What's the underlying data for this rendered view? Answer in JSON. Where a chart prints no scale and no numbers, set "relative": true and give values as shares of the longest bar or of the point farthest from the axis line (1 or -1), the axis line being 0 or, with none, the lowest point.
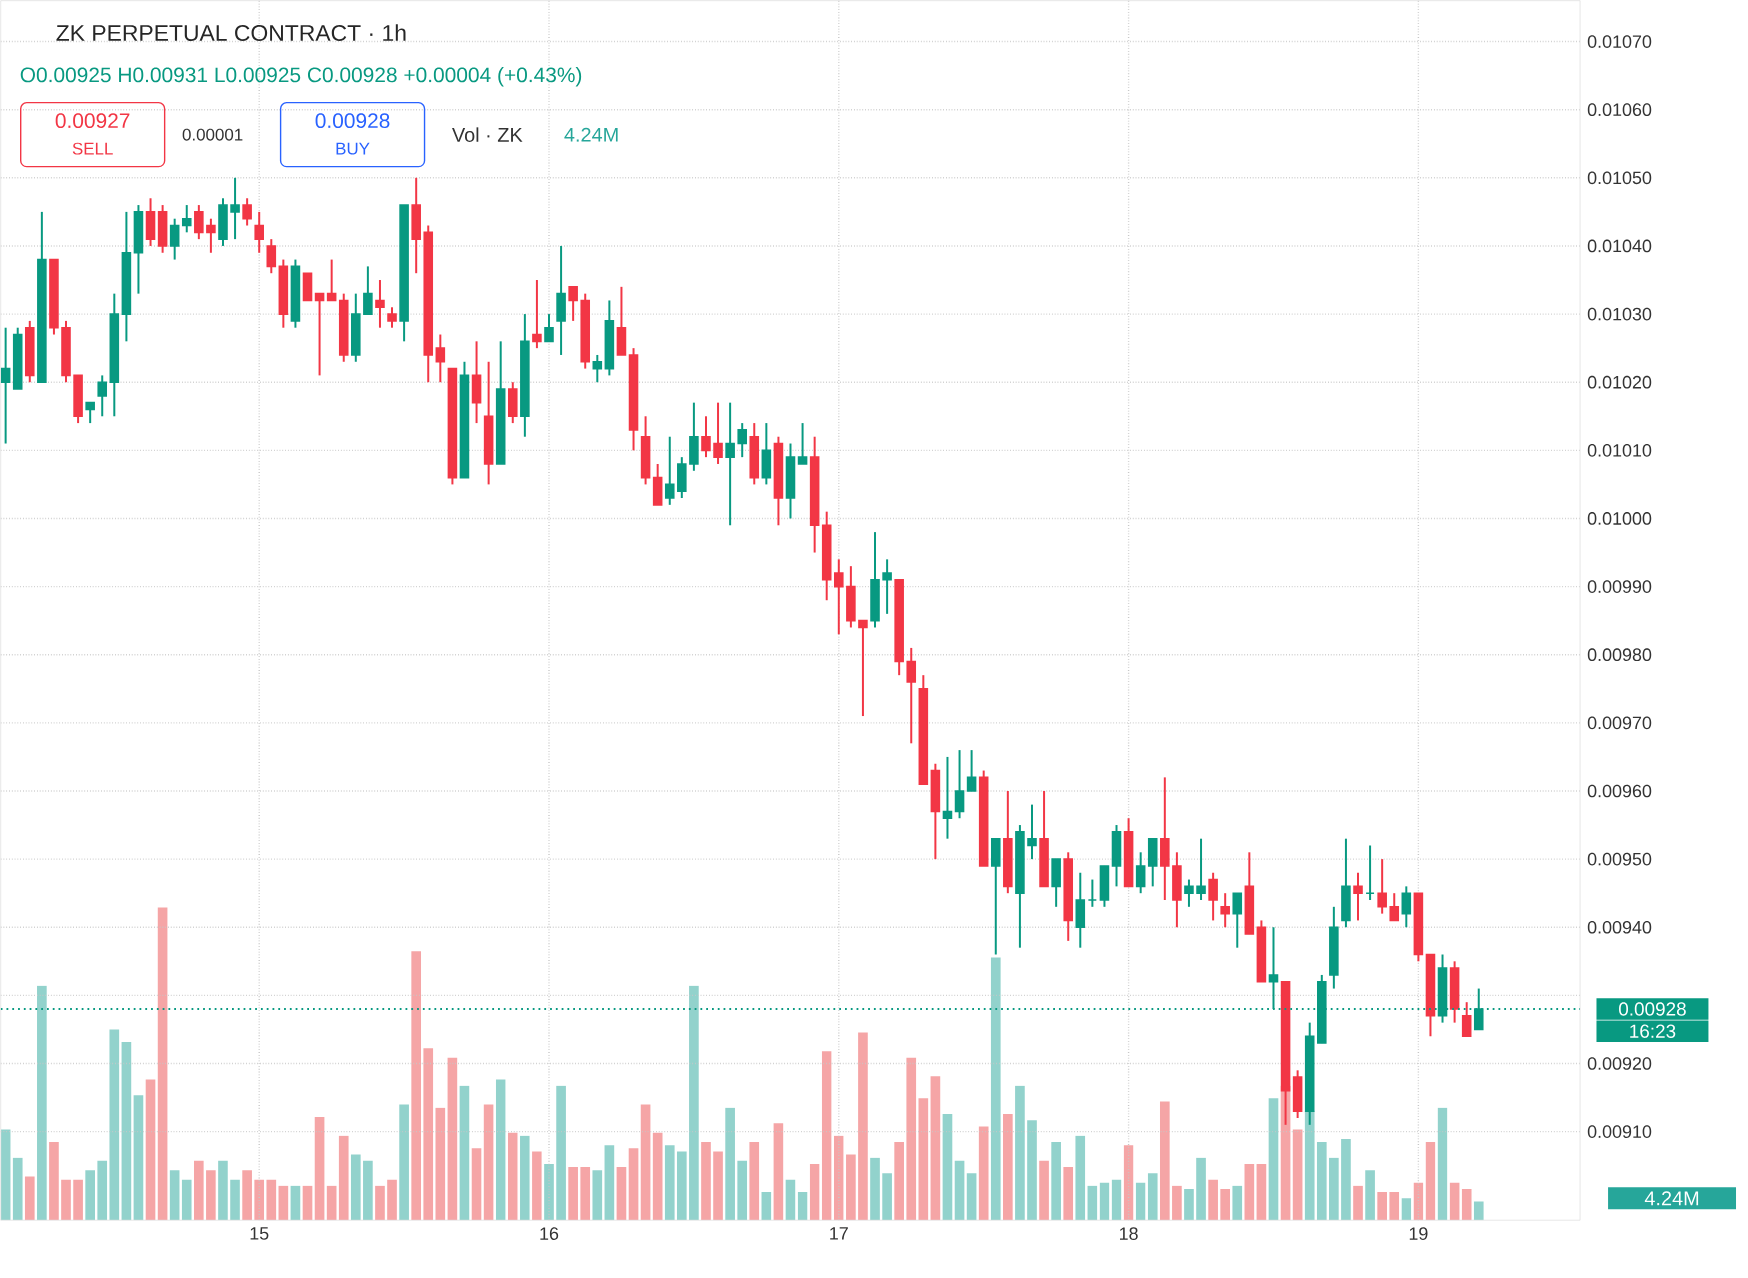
{
  "chart_data": [
    {
      "type": "candlestick",
      "title": "ZK PERPETUAL CONTRACT · 1h",
      "subtitle": "O0.00925 H0.00931 L0.00925 C0.00928 +0.00004 (+0.43%)",
      "x": [
        14.125,
        14.1667,
        14.2083,
        14.25,
        14.2917,
        14.3333,
        14.375,
        14.4167,
        14.4583,
        14.5,
        14.5417,
        14.5833,
        14.625,
        14.6667,
        14.7083,
        14.75,
        14.7917,
        14.8333,
        14.875,
        14.9167,
        14.9583,
        15,
        15.0417,
        15.0833,
        15.125,
        15.1667,
        15.2083,
        15.25,
        15.2917,
        15.3333,
        15.375,
        15.4167,
        15.4583,
        15.5,
        15.5417,
        15.5833,
        15.625,
        15.6667,
        15.7083,
        15.75,
        15.7917,
        15.8333,
        15.875,
        15.9167,
        15.9583,
        16,
        16.0417,
        16.0833,
        16.125,
        16.1667,
        16.2083,
        16.25,
        16.2917,
        16.3333,
        16.375,
        16.4167,
        16.4583,
        16.5,
        16.5417,
        16.5833,
        16.625,
        16.6667,
        16.7083,
        16.75,
        16.7917,
        16.8333,
        16.875,
        16.9167,
        16.9583,
        17,
        17.0417,
        17.0833,
        17.125,
        17.1667,
        17.2083,
        17.25,
        17.2917,
        17.3333,
        17.375,
        17.4167,
        17.4583,
        17.5,
        17.5417,
        17.5833,
        17.625,
        17.6667,
        17.7083,
        17.75,
        17.7917,
        17.8333,
        17.875,
        17.9167,
        17.9583,
        18,
        18.0417,
        18.0833,
        18.125,
        18.1667,
        18.2083,
        18.25,
        18.2917,
        18.3333,
        18.375,
        18.4167,
        18.4583,
        18.5,
        18.5417,
        18.5833,
        18.625,
        18.6667,
        18.7083,
        18.75,
        18.7917,
        18.8333,
        18.875,
        18.9167,
        18.9583,
        19,
        19.0417,
        19.0833,
        19.125,
        19.1667,
        19.2083
      ],
      "ohlc": [
        [
          0.0102,
          0.01028,
          0.01011,
          0.01022
        ],
        [
          0.01019,
          0.01028,
          0.01019,
          0.01027
        ],
        [
          0.01028,
          0.01029,
          0.0102,
          0.01021
        ],
        [
          0.0102,
          0.01045,
          0.0102,
          0.01038
        ],
        [
          0.01038,
          0.01038,
          0.01027,
          0.01028
        ],
        [
          0.01028,
          0.01029,
          0.0102,
          0.01021
        ],
        [
          0.01021,
          0.01021,
          0.01014,
          0.01015
        ],
        [
          0.01016,
          0.01017,
          0.01014,
          0.01017
        ],
        [
          0.01018,
          0.01021,
          0.01015,
          0.0102
        ],
        [
          0.0102,
          0.01033,
          0.01015,
          0.0103
        ],
        [
          0.0103,
          0.01045,
          0.01026,
          0.01039
        ],
        [
          0.01039,
          0.01046,
          0.01033,
          0.01045
        ],
        [
          0.01045,
          0.01047,
          0.0104,
          0.01041
        ],
        [
          0.01045,
          0.01046,
          0.01039,
          0.0104
        ],
        [
          0.0104,
          0.01044,
          0.01038,
          0.01043
        ],
        [
          0.01043,
          0.01046,
          0.01042,
          0.01044
        ],
        [
          0.01045,
          0.01046,
          0.01041,
          0.01042
        ],
        [
          0.01043,
          0.01044,
          0.01039,
          0.01042
        ],
        [
          0.01041,
          0.01047,
          0.0104,
          0.01046
        ],
        [
          0.01045,
          0.0105,
          0.01041,
          0.01046
        ],
        [
          0.01046,
          0.01047,
          0.01043,
          0.01044
        ],
        [
          0.01043,
          0.01045,
          0.01039,
          0.01041
        ],
        [
          0.0104,
          0.01041,
          0.01036,
          0.01037
        ],
        [
          0.01037,
          0.01038,
          0.01028,
          0.0103
        ],
        [
          0.01029,
          0.01038,
          0.01028,
          0.01037
        ],
        [
          0.01036,
          0.01036,
          0.01032,
          0.01032
        ],
        [
          0.01033,
          0.01033,
          0.01021,
          0.01032
        ],
        [
          0.01033,
          0.01038,
          0.01032,
          0.01032
        ],
        [
          0.01032,
          0.01033,
          0.01023,
          0.01024
        ],
        [
          0.01024,
          0.01033,
          0.01023,
          0.0103
        ],
        [
          0.0103,
          0.01037,
          0.0103,
          0.01033
        ],
        [
          0.01032,
          0.01035,
          0.01028,
          0.01031
        ],
        [
          0.0103,
          0.01031,
          0.01028,
          0.01029
        ],
        [
          0.01029,
          0.01046,
          0.01026,
          0.01046
        ],
        [
          0.01046,
          0.0105,
          0.01036,
          0.01041
        ],
        [
          0.01042,
          0.01043,
          0.0102,
          0.01024
        ],
        [
          0.01025,
          0.01027,
          0.0102,
          0.01023
        ],
        [
          0.01022,
          0.01022,
          0.01005,
          0.01006
        ],
        [
          0.01006,
          0.01023,
          0.01006,
          0.01021
        ],
        [
          0.01021,
          0.01026,
          0.01014,
          0.01017
        ],
        [
          0.01015,
          0.01023,
          0.01005,
          0.01008
        ],
        [
          0.01008,
          0.01026,
          0.01008,
          0.01019
        ],
        [
          0.01019,
          0.0102,
          0.01014,
          0.01015
        ],
        [
          0.01015,
          0.0103,
          0.01012,
          0.01026
        ],
        [
          0.01027,
          0.01035,
          0.01025,
          0.01026
        ],
        [
          0.01026,
          0.0103,
          0.01026,
          0.01028
        ],
        [
          0.01029,
          0.0104,
          0.01024,
          0.01033
        ],
        [
          0.01034,
          0.01034,
          0.01029,
          0.01032
        ],
        [
          0.01032,
          0.01033,
          0.01022,
          0.01023
        ],
        [
          0.01022,
          0.01024,
          0.0102,
          0.01023
        ],
        [
          0.01022,
          0.01032,
          0.01021,
          0.01029
        ],
        [
          0.01028,
          0.01034,
          0.01024,
          0.01024
        ],
        [
          0.01024,
          0.01025,
          0.0101,
          0.01013
        ],
        [
          0.01012,
          0.01015,
          0.01005,
          0.01006
        ],
        [
          0.01006,
          0.01008,
          0.01002,
          0.01002
        ],
        [
          0.01003,
          0.01012,
          0.01002,
          0.01005
        ],
        [
          0.01004,
          0.01009,
          0.01003,
          0.01008
        ],
        [
          0.01008,
          0.01017,
          0.01007,
          0.01012
        ],
        [
          0.01012,
          0.01015,
          0.01009,
          0.0101
        ],
        [
          0.01011,
          0.01017,
          0.01008,
          0.01009
        ],
        [
          0.01009,
          0.01017,
          0.00999,
          0.01011
        ],
        [
          0.01011,
          0.01014,
          0.01009,
          0.01013
        ],
        [
          0.01012,
          0.01014,
          0.01005,
          0.01006
        ],
        [
          0.01006,
          0.01014,
          0.01005,
          0.0101
        ],
        [
          0.01011,
          0.01012,
          0.00999,
          0.01003
        ],
        [
          0.01003,
          0.01011,
          0.01,
          0.01009
        ],
        [
          0.01008,
          0.01014,
          0.01008,
          0.01009
        ],
        [
          0.01009,
          0.01012,
          0.00995,
          0.00999
        ],
        [
          0.00999,
          0.01001,
          0.00988,
          0.00991
        ],
        [
          0.00992,
          0.00994,
          0.00983,
          0.0099
        ],
        [
          0.0099,
          0.00993,
          0.00984,
          0.00985
        ],
        [
          0.00985,
          0.00985,
          0.00971,
          0.00984
        ],
        [
          0.00985,
          0.00998,
          0.00984,
          0.00991
        ],
        [
          0.00991,
          0.00994,
          0.00986,
          0.00992
        ],
        [
          0.00991,
          0.00991,
          0.00977,
          0.00979
        ],
        [
          0.00979,
          0.00981,
          0.00967,
          0.00976
        ],
        [
          0.00975,
          0.00977,
          0.00961,
          0.00961
        ],
        [
          0.00963,
          0.00964,
          0.0095,
          0.00957
        ],
        [
          0.00956,
          0.00965,
          0.00953,
          0.00957
        ],
        [
          0.00957,
          0.00966,
          0.00956,
          0.0096
        ],
        [
          0.0096,
          0.00966,
          0.0096,
          0.00962
        ],
        [
          0.00962,
          0.00963,
          0.00949,
          0.00949
        ],
        [
          0.00949,
          0.00953,
          0.00936,
          0.00953
        ],
        [
          0.00953,
          0.0096,
          0.00945,
          0.00946
        ],
        [
          0.00945,
          0.00955,
          0.00937,
          0.00954
        ],
        [
          0.00952,
          0.00958,
          0.0095,
          0.00953
        ],
        [
          0.00953,
          0.0096,
          0.00946,
          0.00946
        ],
        [
          0.00946,
          0.0095,
          0.00943,
          0.0095
        ],
        [
          0.0095,
          0.00951,
          0.00938,
          0.00941
        ],
        [
          0.0094,
          0.00948,
          0.00937,
          0.00944
        ],
        [
          0.00944,
          0.00947,
          0.00943,
          0.00944
        ],
        [
          0.00944,
          0.00949,
          0.00943,
          0.00949
        ],
        [
          0.00949,
          0.00955,
          0.00946,
          0.00954
        ],
        [
          0.00954,
          0.00956,
          0.00946,
          0.00946
        ],
        [
          0.00946,
          0.00951,
          0.00945,
          0.00949
        ],
        [
          0.00949,
          0.00953,
          0.00946,
          0.00953
        ],
        [
          0.00953,
          0.00962,
          0.00944,
          0.00949
        ],
        [
          0.00949,
          0.00951,
          0.0094,
          0.00944
        ],
        [
          0.00945,
          0.00947,
          0.00943,
          0.00946
        ],
        [
          0.00945,
          0.00953,
          0.00944,
          0.00946
        ],
        [
          0.00947,
          0.00948,
          0.00941,
          0.00944
        ],
        [
          0.00943,
          0.00945,
          0.0094,
          0.00942
        ],
        [
          0.00942,
          0.00945,
          0.00937,
          0.00945
        ],
        [
          0.00946,
          0.00951,
          0.00939,
          0.00939
        ],
        [
          0.0094,
          0.00941,
          0.00932,
          0.00932
        ],
        [
          0.00932,
          0.0094,
          0.00928,
          0.00933
        ],
        [
          0.00932,
          0.00932,
          0.00911,
          0.00916
        ],
        [
          0.00918,
          0.00919,
          0.00912,
          0.00913
        ],
        [
          0.00913,
          0.00926,
          0.00911,
          0.00924
        ],
        [
          0.00923,
          0.00933,
          0.00923,
          0.00932
        ],
        [
          0.00933,
          0.00943,
          0.00931,
          0.0094
        ],
        [
          0.00941,
          0.00953,
          0.0094,
          0.00946
        ],
        [
          0.00946,
          0.00948,
          0.00941,
          0.00945
        ],
        [
          0.00945,
          0.00952,
          0.00944,
          0.00945
        ],
        [
          0.00945,
          0.0095,
          0.00942,
          0.00943
        ],
        [
          0.00943,
          0.00945,
          0.00941,
          0.00941
        ],
        [
          0.00942,
          0.00946,
          0.0094,
          0.00945
        ],
        [
          0.00945,
          0.00945,
          0.00935,
          0.00936
        ],
        [
          0.00936,
          0.00936,
          0.00924,
          0.00927
        ],
        [
          0.00927,
          0.00936,
          0.00926,
          0.00934
        ],
        [
          0.00934,
          0.00935,
          0.00926,
          0.00928
        ],
        [
          0.00927,
          0.00929,
          0.00924,
          0.00924
        ],
        [
          0.00925,
          0.00931,
          0.00925,
          0.00928
        ]
      ],
      "colors": [
        "#089981",
        "#089981",
        "#f23645",
        "#089981",
        "#f23645",
        "#f23645",
        "#f23645",
        "#089981",
        "#089981",
        "#089981",
        "#089981",
        "#089981",
        "#f23645",
        "#f23645",
        "#089981",
        "#089981",
        "#f23645",
        "#f23645",
        "#089981",
        "#089981",
        "#f23645",
        "#f23645",
        "#f23645",
        "#f23645",
        "#089981",
        "#f23645",
        "#f23645",
        "#f23645",
        "#f23645",
        "#089981",
        "#089981",
        "#f23645",
        "#f23645",
        "#089981",
        "#f23645",
        "#f23645",
        "#f23645",
        "#f23645",
        "#089981",
        "#f23645",
        "#f23645",
        "#089981",
        "#f23645",
        "#089981",
        "#f23645",
        "#089981",
        "#089981",
        "#f23645",
        "#f23645",
        "#089981",
        "#089981",
        "#f23645",
        "#f23645",
        "#f23645",
        "#f23645",
        "#089981",
        "#089981",
        "#089981",
        "#f23645",
        "#f23645",
        "#089981",
        "#089981",
        "#f23645",
        "#089981",
        "#f23645",
        "#089981",
        "#089981",
        "#f23645",
        "#f23645",
        "#f23645",
        "#f23645",
        "#f23645",
        "#089981",
        "#089981",
        "#f23645",
        "#f23645",
        "#f23645",
        "#f23645",
        "#089981",
        "#089981",
        "#089981",
        "#f23645",
        "#089981",
        "#f23645",
        "#089981",
        "#089981",
        "#f23645",
        "#089981",
        "#f23645",
        "#089981",
        "#089981",
        "#089981",
        "#089981",
        "#f23645",
        "#089981",
        "#089981",
        "#f23645",
        "#f23645",
        "#089981",
        "#089981",
        "#f23645",
        "#f23645",
        "#089981",
        "#f23645",
        "#f23645",
        "#089981",
        "#f23645",
        "#f23645",
        "#089981",
        "#089981",
        "#089981",
        "#089981",
        "#f23645",
        "#089981",
        "#f23645",
        "#f23645",
        "#089981",
        "#f23645",
        "#f23645",
        "#089981",
        "#f23645",
        "#f23645",
        "#089981"
      ],
      "xlim": [
        14.108,
        19.558
      ],
      "ylim": [
        0.00897,
        0.01076
      ],
      "xticks": [
        15,
        16,
        17,
        18,
        19
      ],
      "yticks": [
        {
          "value": 0.0091,
          "label": "0.00910"
        },
        {
          "value": 0.0092,
          "label": "0.00920"
        },
        {
          "value": 0.0093,
          "label": null
        },
        {
          "value": 0.0094,
          "label": "0.00940"
        },
        {
          "value": 0.0095,
          "label": "0.00950"
        },
        {
          "value": 0.0096,
          "label": "0.00960"
        },
        {
          "value": 0.0097,
          "label": "0.00970"
        },
        {
          "value": 0.0098,
          "label": "0.00980"
        },
        {
          "value": 0.0099,
          "label": "0.00990"
        },
        {
          "value": 0.01,
          "label": "0.01000"
        },
        {
          "value": 0.0101,
          "label": "0.01010"
        },
        {
          "value": 0.0102,
          "label": "0.01020"
        },
        {
          "value": 0.0103,
          "label": "0.01030"
        },
        {
          "value": 0.0104,
          "label": "0.01040"
        },
        {
          "value": 0.0105,
          "label": "0.01050"
        },
        {
          "value": 0.0106,
          "label": "0.01060"
        },
        {
          "value": 0.0107,
          "label": "0.01070"
        }
      ],
      "grid": true,
      "ref_lines": [
        {
          "axis": "y",
          "value": 0.00928,
          "label": "0.00928",
          "color": "#089981",
          "line_style": "dotted"
        }
      ],
      "annotations": [
        "0.00927",
        "SELL",
        "0.00001",
        "0.00928",
        "BUY",
        "16:23"
      ]
    },
    {
      "type": "bar",
      "relative": true,
      "x": [
        14.125,
        14.1667,
        14.2083,
        14.25,
        14.2917,
        14.3333,
        14.375,
        14.4167,
        14.4583,
        14.5,
        14.5417,
        14.5833,
        14.625,
        14.6667,
        14.7083,
        14.75,
        14.7917,
        14.8333,
        14.875,
        14.9167,
        14.9583,
        15,
        15.0417,
        15.0833,
        15.125,
        15.1667,
        15.2083,
        15.25,
        15.2917,
        15.3333,
        15.375,
        15.4167,
        15.4583,
        15.5,
        15.5417,
        15.5833,
        15.625,
        15.6667,
        15.7083,
        15.75,
        15.7917,
        15.8333,
        15.875,
        15.9167,
        15.9583,
        16,
        16.0417,
        16.0833,
        16.125,
        16.1667,
        16.2083,
        16.25,
        16.2917,
        16.3333,
        16.375,
        16.4167,
        16.4583,
        16.5,
        16.5417,
        16.5833,
        16.625,
        16.6667,
        16.7083,
        16.75,
        16.7917,
        16.8333,
        16.875,
        16.9167,
        16.9583,
        17,
        17.0417,
        17.0833,
        17.125,
        17.1667,
        17.2083,
        17.25,
        17.2917,
        17.3333,
        17.375,
        17.4167,
        17.4583,
        17.5,
        17.5417,
        17.5833,
        17.625,
        17.6667,
        17.7083,
        17.75,
        17.7917,
        17.8333,
        17.875,
        17.9167,
        17.9583,
        18,
        18.0417,
        18.0833,
        18.125,
        18.1667,
        18.2083,
        18.25,
        18.2917,
        18.3333,
        18.375,
        18.4167,
        18.4583,
        18.5,
        18.5417,
        18.5833,
        18.625,
        18.6667,
        18.7083,
        18.75,
        18.7917,
        18.8333,
        18.875,
        18.9167,
        18.9583,
        19,
        19.0417,
        19.0833,
        19.125,
        19.1667,
        19.2083
      ],
      "values": [
        0.29,
        0.2,
        0.14,
        0.75,
        0.25,
        0.13,
        0.13,
        0.16,
        0.19,
        0.61,
        0.57,
        0.4,
        0.45,
        1,
        0.16,
        0.13,
        0.19,
        0.16,
        0.19,
        0.13,
        0.16,
        0.13,
        0.13,
        0.11,
        0.11,
        0.11,
        0.33,
        0.11,
        0.27,
        0.21,
        0.19,
        0.11,
        0.13,
        0.37,
        0.86,
        0.55,
        0.36,
        0.52,
        0.43,
        0.23,
        0.37,
        0.45,
        0.28,
        0.27,
        0.22,
        0.18,
        0.43,
        0.17,
        0.17,
        0.16,
        0.24,
        0.17,
        0.23,
        0.37,
        0.28,
        0.24,
        0.22,
        0.75,
        0.25,
        0.22,
        0.36,
        0.19,
        0.25,
        0.09,
        0.31,
        0.13,
        0.09,
        0.18,
        0.54,
        0.27,
        0.21,
        0.6,
        0.2,
        0.15,
        0.25,
        0.52,
        0.39,
        0.46,
        0.34,
        0.19,
        0.15,
        0.3,
        0.84,
        0.34,
        0.43,
        0.32,
        0.19,
        0.25,
        0.17,
        0.27,
        0.11,
        0.12,
        0.13,
        0.24,
        0.12,
        0.15,
        0.38,
        0.11,
        0.1,
        0.2,
        0.13,
        0.1,
        0.11,
        0.18,
        0.18,
        0.39,
        0.43,
        0.29,
        0.35,
        0.25,
        0.2,
        0.26,
        0.11,
        0.16,
        0.09,
        0.09,
        0.07,
        0.12,
        0.25,
        0.36,
        0.12,
        0.1,
        0.06
      ],
      "colors": [
        "#92d2cc",
        "#92d2cc",
        "#f5a5a6",
        "#92d2cc",
        "#f5a5a6",
        "#f5a5a6",
        "#f5a5a6",
        "#92d2cc",
        "#92d2cc",
        "#92d2cc",
        "#92d2cc",
        "#92d2cc",
        "#f5a5a6",
        "#f5a5a6",
        "#92d2cc",
        "#92d2cc",
        "#f5a5a6",
        "#f5a5a6",
        "#92d2cc",
        "#92d2cc",
        "#f5a5a6",
        "#f5a5a6",
        "#f5a5a6",
        "#f5a5a6",
        "#92d2cc",
        "#f5a5a6",
        "#f5a5a6",
        "#f5a5a6",
        "#f5a5a6",
        "#92d2cc",
        "#92d2cc",
        "#f5a5a6",
        "#f5a5a6",
        "#92d2cc",
        "#f5a5a6",
        "#f5a5a6",
        "#f5a5a6",
        "#f5a5a6",
        "#92d2cc",
        "#f5a5a6",
        "#f5a5a6",
        "#92d2cc",
        "#f5a5a6",
        "#92d2cc",
        "#f5a5a6",
        "#92d2cc",
        "#92d2cc",
        "#f5a5a6",
        "#f5a5a6",
        "#92d2cc",
        "#92d2cc",
        "#f5a5a6",
        "#f5a5a6",
        "#f5a5a6",
        "#f5a5a6",
        "#92d2cc",
        "#92d2cc",
        "#92d2cc",
        "#f5a5a6",
        "#f5a5a6",
        "#92d2cc",
        "#92d2cc",
        "#f5a5a6",
        "#92d2cc",
        "#f5a5a6",
        "#92d2cc",
        "#92d2cc",
        "#f5a5a6",
        "#f5a5a6",
        "#f5a5a6",
        "#f5a5a6",
        "#f5a5a6",
        "#92d2cc",
        "#92d2cc",
        "#f5a5a6",
        "#f5a5a6",
        "#f5a5a6",
        "#f5a5a6",
        "#92d2cc",
        "#92d2cc",
        "#92d2cc",
        "#f5a5a6",
        "#92d2cc",
        "#f5a5a6",
        "#92d2cc",
        "#92d2cc",
        "#f5a5a6",
        "#92d2cc",
        "#f5a5a6",
        "#92d2cc",
        "#92d2cc",
        "#92d2cc",
        "#92d2cc",
        "#f5a5a6",
        "#92d2cc",
        "#92d2cc",
        "#f5a5a6",
        "#f5a5a6",
        "#92d2cc",
        "#92d2cc",
        "#f5a5a6",
        "#f5a5a6",
        "#92d2cc",
        "#f5a5a6",
        "#f5a5a6",
        "#92d2cc",
        "#f5a5a6",
        "#f5a5a6",
        "#92d2cc",
        "#92d2cc",
        "#92d2cc",
        "#92d2cc",
        "#f5a5a6",
        "#92d2cc",
        "#f5a5a6",
        "#f5a5a6",
        "#92d2cc",
        "#f5a5a6",
        "#f5a5a6",
        "#92d2cc",
        "#f5a5a6",
        "#f5a5a6",
        "#92d2cc"
      ],
      "xlim": [
        14.108,
        19.558
      ],
      "annotations": [
        "Vol · ZK",
        "4.24M",
        "4.24M"
      ]
    }
  ]
}
